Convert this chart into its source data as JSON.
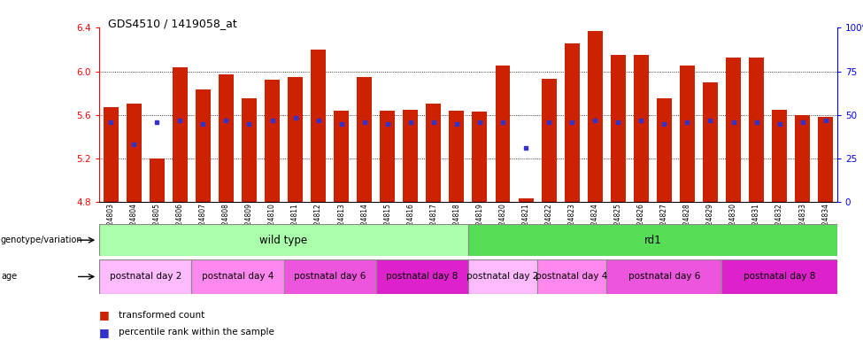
{
  "title": "GDS4510 / 1419058_at",
  "samples": [
    "GSM1024803",
    "GSM1024804",
    "GSM1024805",
    "GSM1024806",
    "GSM1024807",
    "GSM1024808",
    "GSM1024809",
    "GSM1024810",
    "GSM1024811",
    "GSM1024812",
    "GSM1024813",
    "GSM1024814",
    "GSM1024815",
    "GSM1024816",
    "GSM1024817",
    "GSM1024818",
    "GSM1024819",
    "GSM1024820",
    "GSM1024821",
    "GSM1024822",
    "GSM1024823",
    "GSM1024824",
    "GSM1024825",
    "GSM1024826",
    "GSM1024827",
    "GSM1024828",
    "GSM1024829",
    "GSM1024830",
    "GSM1024831",
    "GSM1024832",
    "GSM1024833",
    "GSM1024834"
  ],
  "red_values": [
    5.67,
    5.7,
    5.2,
    6.04,
    5.83,
    5.97,
    5.75,
    5.92,
    5.95,
    6.2,
    5.64,
    5.95,
    5.64,
    5.65,
    5.7,
    5.64,
    5.63,
    6.05,
    4.83,
    5.93,
    6.26,
    6.37,
    6.15,
    6.15,
    5.75,
    6.05,
    5.9,
    6.13,
    6.13,
    5.65,
    5.6,
    5.58
  ],
  "blue_values": [
    5.53,
    5.33,
    5.53,
    5.55,
    5.52,
    5.55,
    5.52,
    5.55,
    5.57,
    5.55,
    5.52,
    5.53,
    5.52,
    5.53,
    5.53,
    5.52,
    5.53,
    5.53,
    5.3,
    5.53,
    5.53,
    5.55,
    5.53,
    5.55,
    5.52,
    5.53,
    5.55,
    5.53,
    5.53,
    5.52,
    5.53,
    5.55
  ],
  "ymin": 4.8,
  "ymax": 6.4,
  "y_ticks_left": [
    4.8,
    5.2,
    5.6,
    6.0,
    6.4
  ],
  "y_ticks_right_vals": [
    0,
    25,
    50,
    75,
    100
  ],
  "y_ticks_right_labels": [
    "0",
    "25",
    "50",
    "75",
    "100%"
  ],
  "bar_color": "#CC2200",
  "blue_color": "#3333CC",
  "wildtype_color": "#AAFFAA",
  "rd1_color": "#55DD55",
  "age_colors_wt": [
    "#FFCCFF",
    "#FF99FF",
    "#EE66EE",
    "#CC33CC"
  ],
  "age_colors_rd1": [
    "#FFCCFF",
    "#FF99FF",
    "#EE66EE",
    "#CC33CC"
  ],
  "age_labels": [
    "postnatal day 2",
    "postnatal day 4",
    "postnatal day 6",
    "postnatal day 8",
    "postnatal day 2",
    "postnatal day 4",
    "postnatal day 6",
    "postnatal day 8"
  ],
  "wildtype_range": [
    0,
    16
  ],
  "rd1_range": [
    16,
    32
  ],
  "age_ranges": [
    [
      0,
      4
    ],
    [
      4,
      8
    ],
    [
      8,
      12
    ],
    [
      12,
      16
    ],
    [
      16,
      19
    ],
    [
      19,
      22
    ],
    [
      22,
      27
    ],
    [
      27,
      32
    ]
  ],
  "bar_width": 0.65
}
